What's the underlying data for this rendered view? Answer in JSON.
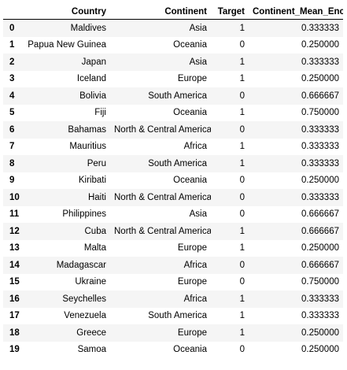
{
  "table": {
    "columns": [
      "",
      "Country",
      "Continent",
      "Target",
      "Continent_Mean_Enc"
    ],
    "rows": [
      {
        "index": "0",
        "country": "Maldives",
        "continent": "Asia",
        "target": "1",
        "enc": "0.333333"
      },
      {
        "index": "1",
        "country": "Papua New Guinea",
        "continent": "Oceania",
        "target": "0",
        "enc": "0.250000"
      },
      {
        "index": "2",
        "country": "Japan",
        "continent": "Asia",
        "target": "1",
        "enc": "0.333333"
      },
      {
        "index": "3",
        "country": "Iceland",
        "continent": "Europe",
        "target": "1",
        "enc": "0.250000"
      },
      {
        "index": "4",
        "country": "Bolivia",
        "continent": "South America",
        "target": "0",
        "enc": "0.666667"
      },
      {
        "index": "5",
        "country": "Fiji",
        "continent": "Oceania",
        "target": "1",
        "enc": "0.750000"
      },
      {
        "index": "6",
        "country": "Bahamas",
        "continent": "North & Central America",
        "target": "0",
        "enc": "0.333333"
      },
      {
        "index": "7",
        "country": "Mauritius",
        "continent": "Africa",
        "target": "1",
        "enc": "0.333333"
      },
      {
        "index": "8",
        "country": "Peru",
        "continent": "South America",
        "target": "1",
        "enc": "0.333333"
      },
      {
        "index": "9",
        "country": "Kiribati",
        "continent": "Oceania",
        "target": "0",
        "enc": "0.250000"
      },
      {
        "index": "10",
        "country": "Haiti",
        "continent": "North & Central America",
        "target": "0",
        "enc": "0.333333"
      },
      {
        "index": "11",
        "country": "Philippines",
        "continent": "Asia",
        "target": "0",
        "enc": "0.666667"
      },
      {
        "index": "12",
        "country": "Cuba",
        "continent": "North & Central America",
        "target": "1",
        "enc": "0.666667"
      },
      {
        "index": "13",
        "country": "Malta",
        "continent": "Europe",
        "target": "1",
        "enc": "0.250000"
      },
      {
        "index": "14",
        "country": "Madagascar",
        "continent": "Africa",
        "target": "0",
        "enc": "0.666667"
      },
      {
        "index": "15",
        "country": "Ukraine",
        "continent": "Europe",
        "target": "0",
        "enc": "0.750000"
      },
      {
        "index": "16",
        "country": "Seychelles",
        "continent": "Africa",
        "target": "1",
        "enc": "0.333333"
      },
      {
        "index": "17",
        "country": "Venezuela",
        "continent": "South America",
        "target": "1",
        "enc": "0.333333"
      },
      {
        "index": "18",
        "country": "Greece",
        "continent": "Europe",
        "target": "1",
        "enc": "0.250000"
      },
      {
        "index": "19",
        "country": "Samoa",
        "continent": "Oceania",
        "target": "0",
        "enc": "0.250000"
      }
    ]
  }
}
